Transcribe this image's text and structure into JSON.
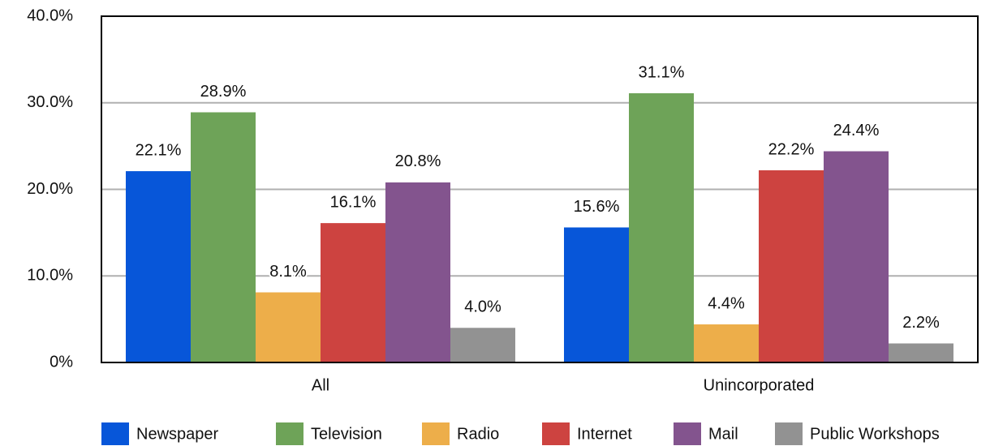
{
  "chart_data": {
    "type": "bar",
    "categories": [
      "All",
      "Unincorporated"
    ],
    "series": [
      {
        "name": "Newspaper",
        "color": "#0756d9",
        "values": [
          22.1,
          15.6
        ],
        "value_labels": [
          "22.1%",
          "15.6%"
        ]
      },
      {
        "name": "Television",
        "color": "#6ea358",
        "values": [
          28.9,
          31.1
        ],
        "value_labels": [
          "28.9%",
          "31.1%"
        ]
      },
      {
        "name": "Radio",
        "color": "#edae4a",
        "values": [
          8.1,
          4.4
        ],
        "value_labels": [
          "8.1%",
          "4.4%"
        ]
      },
      {
        "name": "Internet",
        "color": "#cd4340",
        "values": [
          16.1,
          22.2
        ],
        "value_labels": [
          "16.1%",
          "22.2%"
        ]
      },
      {
        "name": "Mail",
        "color": "#83548e",
        "values": [
          20.8,
          24.4
        ],
        "value_labels": [
          "20.8%",
          "24.4%"
        ]
      },
      {
        "name": "Public Workshops",
        "color": "#929292",
        "values": [
          4.0,
          2.2
        ],
        "value_labels": [
          "4.0%",
          "2.2%"
        ]
      }
    ],
    "ylim": [
      0,
      40
    ],
    "yticks": [
      {
        "value": 0,
        "label": "0%"
      },
      {
        "value": 10,
        "label": "10.0%"
      },
      {
        "value": 20,
        "label": "20.0%"
      },
      {
        "value": 30,
        "label": "30.0%"
      },
      {
        "value": 40,
        "label": "40.0%"
      }
    ],
    "grid": true,
    "legend": "bottom"
  }
}
